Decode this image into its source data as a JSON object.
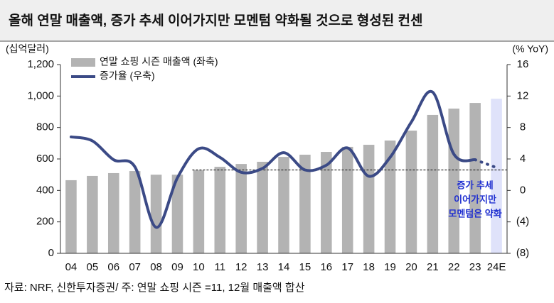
{
  "chart_data": {
    "type": "bar_line",
    "title": "올해 연말 매출액, 증가 추세 이어가지만 모멘텀 약화될 것으로 형성된 컨센",
    "source": "자료: NRF, 신한투자증권/ 주: 연말 쇼핑 시즌 =11, 12월 매출액 합산",
    "y_label": "(십억달러)",
    "y2_label": "(% YoY)",
    "categories": [
      "04",
      "05",
      "06",
      "07",
      "08",
      "09",
      "10",
      "11",
      "12",
      "13",
      "14",
      "15",
      "16",
      "17",
      "18",
      "19",
      "20",
      "21",
      "22",
      "23",
      "24E"
    ],
    "series": [
      {
        "name": "연말 쇼핑 시즌 매출액 (좌축)",
        "type": "bar",
        "axis": "y",
        "color": "#b3b3b3",
        "colors": [
          "#b3b3b3",
          "#b3b3b3",
          "#b3b3b3",
          "#b3b3b3",
          "#b3b3b3",
          "#b3b3b3",
          "#b3b3b3",
          "#b3b3b3",
          "#b3b3b3",
          "#b3b3b3",
          "#b3b3b3",
          "#b3b3b3",
          "#b3b3b3",
          "#b3b3b3",
          "#b3b3b3",
          "#b3b3b3",
          "#b3b3b3",
          "#b3b3b3",
          "#b3b3b3",
          "#b3b3b3",
          "#dfe2fa"
        ],
        "values": [
          465,
          492,
          510,
          523,
          500,
          500,
          528,
          550,
          568,
          582,
          613,
          627,
          645,
          677,
          690,
          717,
          780,
          880,
          920,
          956,
          983
        ]
      },
      {
        "name": "증가율 (우축)",
        "type": "line",
        "axis": "y2",
        "color": "#3b4a86",
        "dotted_segments": [
          [
            19,
            20
          ]
        ],
        "values": [
          6.8,
          6.3,
          3.9,
          3.0,
          -4.7,
          1.6,
          5.3,
          4.2,
          2.3,
          2.8,
          4.8,
          2.6,
          3.2,
          5.4,
          1.8,
          4.2,
          8.7,
          12.5,
          4.6,
          3.9,
          2.9
        ]
      }
    ],
    "reference_line": {
      "value": 2.6,
      "axis": "y2",
      "start": 6,
      "style": "dashed",
      "color": "#333333"
    },
    "annotation": {
      "lines": [
        "증가 추세",
        "이어가지만",
        "모멘텀은 약화"
      ],
      "color": "#1f2fd0",
      "category": 20
    },
    "ylim": [
      0,
      1200
    ],
    "yticks": [
      0,
      200,
      400,
      600,
      800,
      {
        "value": 1000,
        "label": "1,000"
      },
      {
        "value": 1200,
        "label": "1,200"
      }
    ],
    "y2lim": [
      -8,
      16
    ],
    "y2ticks": [
      {
        "value": -8,
        "label": "(8)"
      },
      {
        "value": -4,
        "label": "(4)"
      },
      0,
      4,
      8,
      12,
      16
    ],
    "legend": "top-left"
  }
}
